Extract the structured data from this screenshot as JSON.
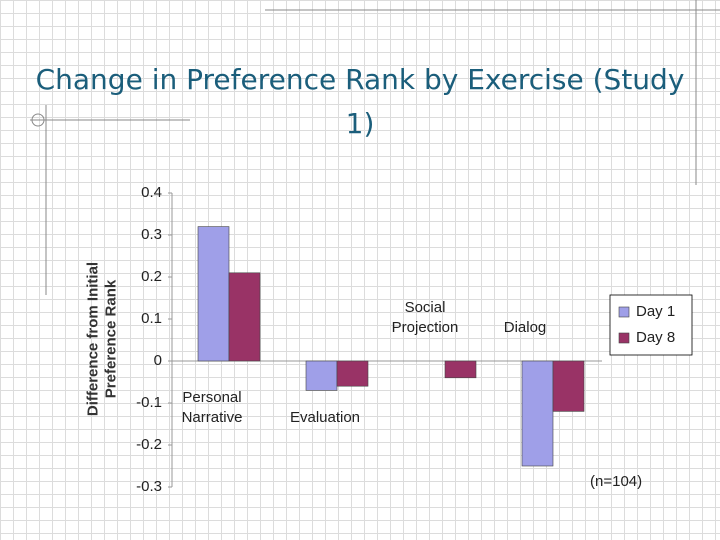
{
  "chart_data": {
    "type": "bar",
    "title": "Change in Preference Rank by Exercise (Study 1)",
    "y_label": "Difference from Initial Preference Rank",
    "annotation": "(n=104)",
    "categories": [
      "Personal Narrative",
      "Evaluation",
      "Social Projection",
      "Dialog"
    ],
    "series": [
      {
        "name": "Day 1",
        "color": "#9f9fe8",
        "values": [
          0.32,
          -0.07,
          0,
          -0.25
        ]
      },
      {
        "name": "Day 8",
        "color": "#993366",
        "values": [
          0.21,
          -0.06,
          -0.04,
          -0.12
        ]
      }
    ],
    "ylim": [
      -0.3,
      0.4
    ],
    "yticks": [
      -0.3,
      -0.2,
      -0.1,
      0,
      0.1,
      0.2,
      0.3,
      0.4
    ],
    "legend": "right"
  }
}
